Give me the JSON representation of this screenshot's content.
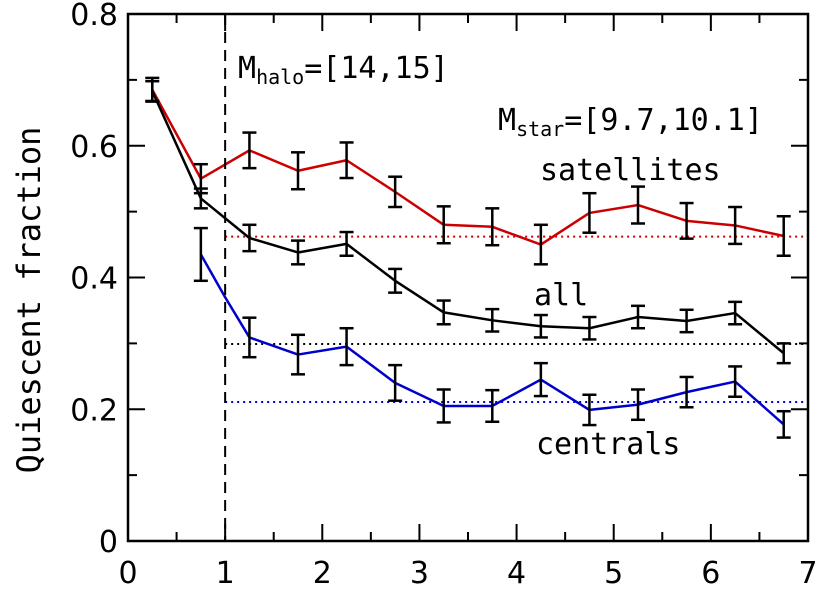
{
  "chart_data": {
    "type": "line",
    "title": "",
    "xlabel": "",
    "ylabel": "Quiescent fraction",
    "xlim": [
      0,
      7
    ],
    "ylim": [
      0,
      0.8
    ],
    "xticks": [
      "0",
      "1",
      "2",
      "3",
      "4",
      "5",
      "6",
      "7"
    ],
    "yticks": [
      "0",
      "0.2",
      "0.4",
      "0.6",
      "0.8"
    ],
    "grid": false,
    "annotations": {
      "mhalo_main": "M",
      "mhalo_sub": "halo",
      "mhalo_value": "=[14,15]",
      "mstar_main": "M",
      "mstar_sub": "star",
      "mstar_value": "=[9.7,10.1]",
      "vline_x": 1
    },
    "series": [
      {
        "name": "satellites",
        "color": "#cc0000",
        "x": [
          0.25,
          0.75,
          1.25,
          1.75,
          2.25,
          2.75,
          3.25,
          3.75,
          4.25,
          4.75,
          5.25,
          5.75,
          6.25,
          6.75
        ],
        "y": [
          0.685,
          0.55,
          0.593,
          0.562,
          0.578,
          0.53,
          0.48,
          0.477,
          0.45,
          0.498,
          0.51,
          0.486,
          0.479,
          0.463
        ],
        "err": [
          0.018,
          0.022,
          0.027,
          0.028,
          0.027,
          0.023,
          0.028,
          0.028,
          0.03,
          0.03,
          0.028,
          0.027,
          0.028,
          0.03
        ],
        "reference": 0.462,
        "ref_xmin": 1
      },
      {
        "name": "all",
        "color": "#000000",
        "x": [
          0.25,
          0.75,
          1.25,
          1.75,
          2.25,
          2.75,
          3.25,
          3.75,
          4.25,
          4.75,
          5.25,
          5.75,
          6.25,
          6.75
        ],
        "y": [
          0.683,
          0.52,
          0.46,
          0.438,
          0.451,
          0.395,
          0.347,
          0.335,
          0.326,
          0.323,
          0.34,
          0.334,
          0.346,
          0.285
        ],
        "err": [
          0.015,
          0.015,
          0.02,
          0.018,
          0.018,
          0.018,
          0.018,
          0.017,
          0.017,
          0.017,
          0.017,
          0.017,
          0.017,
          0.015
        ],
        "reference": 0.299,
        "ref_xmin": 1
      },
      {
        "name": "centrals",
        "color": "#0000cc",
        "x": [
          0.75,
          1.25,
          1.75,
          2.25,
          2.75,
          3.25,
          3.75,
          4.25,
          4.75,
          5.25,
          5.75,
          6.25,
          6.75
        ],
        "y": [
          0.435,
          0.309,
          0.283,
          0.295,
          0.24,
          0.205,
          0.205,
          0.245,
          0.199,
          0.207,
          0.226,
          0.242,
          0.177
        ],
        "err": [
          0.04,
          0.03,
          0.03,
          0.028,
          0.027,
          0.025,
          0.024,
          0.025,
          0.023,
          0.023,
          0.023,
          0.023,
          0.02
        ],
        "reference": 0.211,
        "ref_xmin": 1,
        "line_x0": 1.0,
        "line_y0": 0.37
      }
    ],
    "series_labels": {
      "satellites": "satellites",
      "all": "all",
      "centrals": "centrals"
    }
  }
}
